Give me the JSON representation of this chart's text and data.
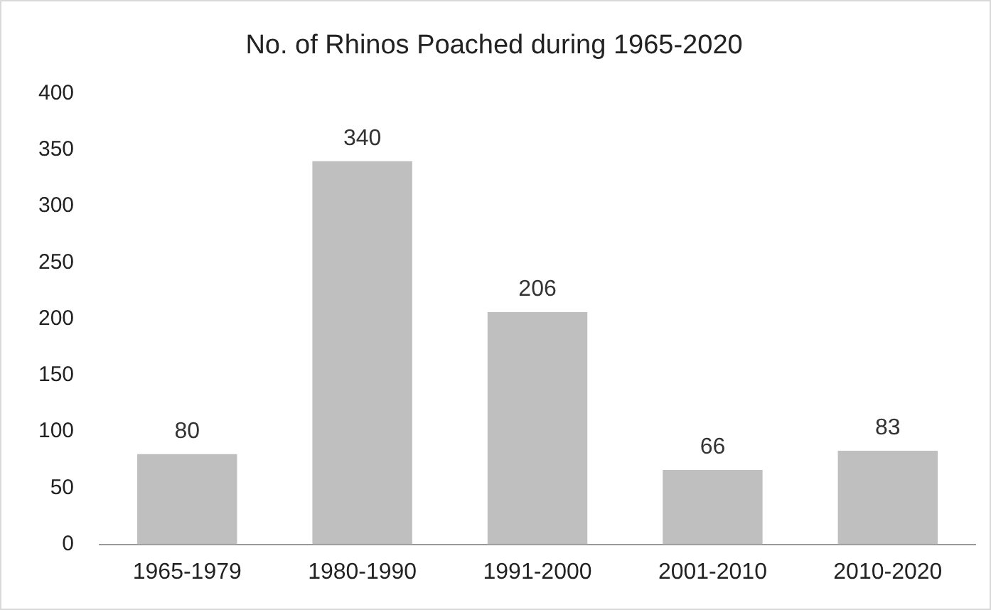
{
  "chart_data": {
    "type": "bar",
    "title": "No. of Rhinos Poached during 1965-2020",
    "categories": [
      "1965-1979",
      "1980-1990",
      "1991-2000",
      "2001-2010",
      "2010-2020"
    ],
    "values": [
      80,
      340,
      206,
      66,
      83
    ],
    "color": "#bfbfbf",
    "ylim": [
      0,
      400
    ],
    "yticks": [
      0,
      50,
      100,
      150,
      200,
      250,
      300,
      350,
      400
    ],
    "grid": false,
    "legend": false,
    "data_labels": true
  }
}
